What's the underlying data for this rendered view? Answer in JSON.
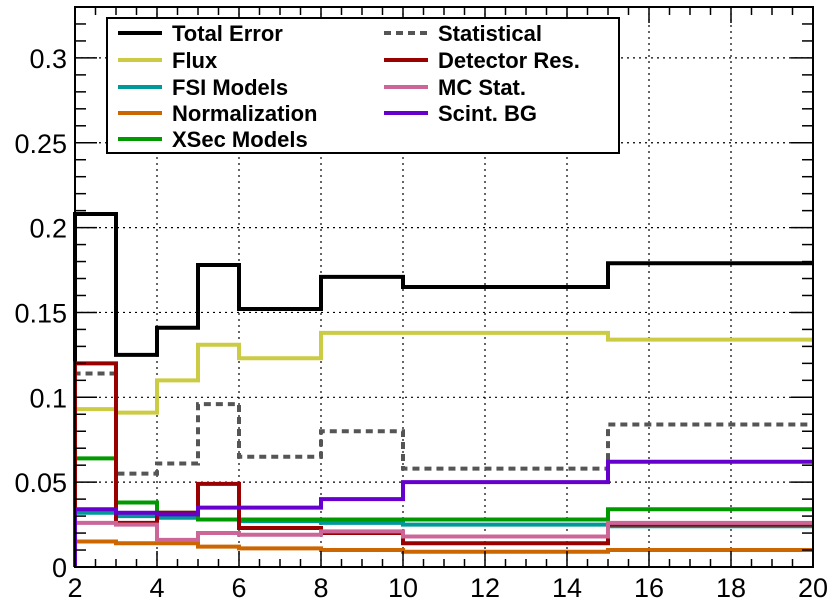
{
  "chart_data": {
    "type": "line",
    "style": "step-histogram",
    "bin_edges": [
      2,
      3,
      4,
      5,
      6,
      8,
      10,
      15,
      20
    ],
    "xlim": [
      2,
      20
    ],
    "ylim": [
      0,
      0.33
    ],
    "x_ticks": [
      2,
      4,
      6,
      8,
      10,
      12,
      14,
      16,
      18,
      20
    ],
    "x_tick_labels": [
      "2",
      "4",
      "6",
      "8",
      "10",
      "12",
      "14",
      "16",
      "18",
      "20"
    ],
    "y_ticks": [
      0,
      0.05,
      0.1,
      0.15,
      0.2,
      0.25,
      0.3
    ],
    "y_tick_labels": [
      "0",
      "0.05",
      "0.1",
      "0.15",
      "0.2",
      "0.25",
      "0.3"
    ],
    "grid": true,
    "title": "",
    "xlabel": "",
    "ylabel": "",
    "legend_position": "top-left",
    "series": [
      {
        "name": "Total Error",
        "color": "#000000",
        "dashed": false,
        "values": [
          0.208,
          0.125,
          0.141,
          0.178,
          0.152,
          0.171,
          0.165,
          0.179
        ]
      },
      {
        "name": "Flux",
        "color": "#cccc44",
        "dashed": false,
        "values": [
          0.093,
          0.091,
          0.11,
          0.131,
          0.123,
          0.138,
          0.138,
          0.134
        ]
      },
      {
        "name": "FSI Models",
        "color": "#009999",
        "dashed": false,
        "values": [
          0.032,
          0.03,
          0.029,
          0.028,
          0.027,
          0.026,
          0.025,
          0.024
        ]
      },
      {
        "name": "Normalization",
        "color": "#cc6600",
        "dashed": false,
        "values": [
          0.015,
          0.014,
          0.014,
          0.012,
          0.011,
          0.01,
          0.009,
          0.01
        ]
      },
      {
        "name": "XSec Models",
        "color": "#009900",
        "dashed": false,
        "values": [
          0.064,
          0.038,
          0.032,
          0.028,
          0.028,
          0.028,
          0.028,
          0.034
        ]
      },
      {
        "name": "Statistical",
        "color": "#555555",
        "dashed": true,
        "values": [
          0.114,
          0.055,
          0.061,
          0.096,
          0.065,
          0.08,
          0.058,
          0.084
        ]
      },
      {
        "name": "Detector Res.",
        "color": "#990000",
        "dashed": false,
        "values": [
          0.12,
          0.026,
          0.032,
          0.049,
          0.023,
          0.02,
          0.014,
          0.025
        ]
      },
      {
        "name": "MC Stat.",
        "color": "#cc6699",
        "dashed": false,
        "values": [
          0.026,
          0.025,
          0.016,
          0.02,
          0.019,
          0.021,
          0.018,
          0.026
        ]
      },
      {
        "name": "Scint. BG",
        "color": "#6600cc",
        "dashed": false,
        "values": [
          0.034,
          0.032,
          0.031,
          0.035,
          0.035,
          0.04,
          0.05,
          0.062
        ]
      }
    ]
  }
}
